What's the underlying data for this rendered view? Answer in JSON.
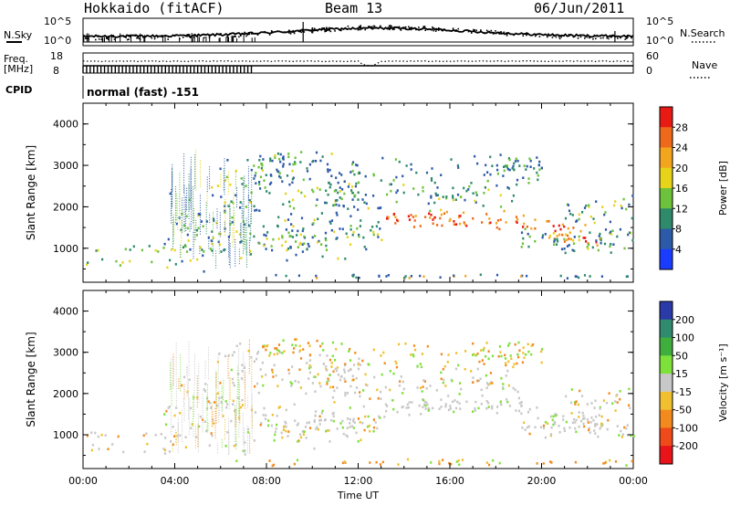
{
  "header": {
    "site": "Hokkaido (fitACF)",
    "beam": "Beam 13",
    "date": "06/Jun/2011"
  },
  "chart_data": [
    {
      "type": "line",
      "panel": "noise",
      "left_label": "N.Sky",
      "left_ticks": [
        "10^5",
        "10^0"
      ],
      "right_label": "N.Search",
      "right_ticks": [
        "10^5",
        "10^0"
      ],
      "x_range_hours": [
        0,
        24
      ]
    },
    {
      "type": "line",
      "panel": "frequency-nave",
      "left_label": "Freq. [MHz]",
      "left_ticks": [
        "18",
        "8"
      ],
      "right_label": "Nave",
      "right_ticks": [
        "60",
        "0"
      ],
      "x_range_hours": [
        0,
        24
      ]
    },
    {
      "type": "table",
      "panel": "cpid",
      "label": "CPID",
      "value": "normal (fast) -151"
    },
    {
      "type": "heatmap",
      "panel": "power",
      "ylabel": "Slant Range [km]",
      "ylim": [
        180,
        4500
      ],
      "y_ticks": [
        "1000",
        "2000",
        "3000",
        "4000"
      ],
      "x_range_hours": [
        0,
        24
      ],
      "colorbar": {
        "label": "Power [dB]",
        "ticks": [
          "4",
          "8",
          "12",
          "16",
          "20",
          "24",
          "28"
        ],
        "range": [
          0,
          32
        ],
        "colors": [
          "#1a3cff",
          "#2d5aa8",
          "#2e8a6a",
          "#6cc23a",
          "#e6d31a",
          "#f3a51e",
          "#ee6a1a",
          "#e81a14"
        ]
      }
    },
    {
      "type": "heatmap",
      "panel": "velocity",
      "ylabel": "Slant Range [km]",
      "ylim": [
        180,
        4500
      ],
      "y_ticks": [
        "1000",
        "2000",
        "3000",
        "4000"
      ],
      "x_range_hours": [
        0,
        24
      ],
      "xlabel": "Time UT",
      "x_ticks": [
        "00:00",
        "04:00",
        "08:00",
        "12:00",
        "16:00",
        "20:00",
        "00:00"
      ],
      "colorbar": {
        "label": "Velocity [m s⁻¹]",
        "ticks": [
          "200",
          "100",
          "50",
          "15",
          "-15",
          "-50",
          "-100",
          "-200"
        ],
        "colors": [
          "#2a3aa8",
          "#2f8a6e",
          "#3fae3c",
          "#7ee13a",
          "#c8c8c8",
          "#f0c030",
          "#f38a1e",
          "#ee4a1a",
          "#e8141a"
        ]
      }
    }
  ]
}
